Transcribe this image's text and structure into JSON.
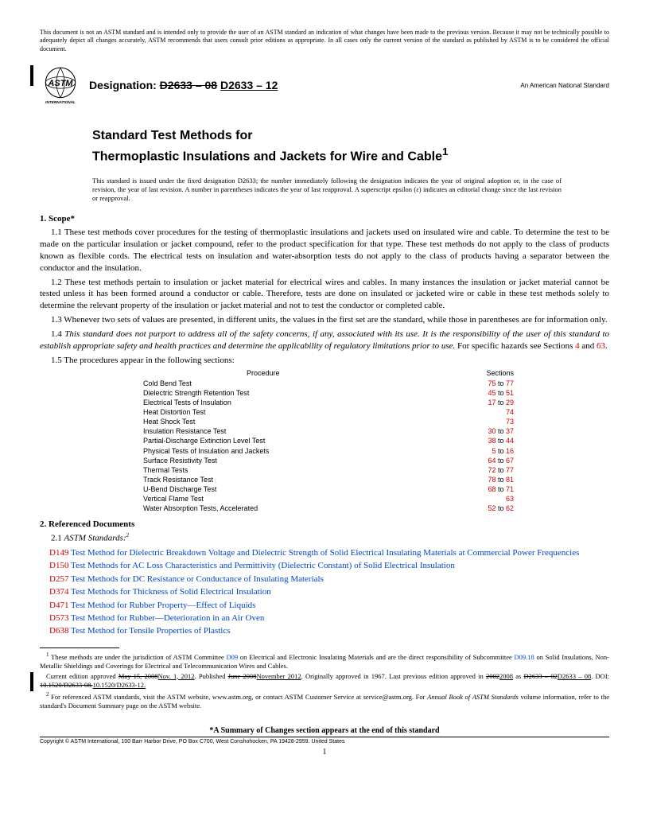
{
  "disclaimer": "This document is not an ASTM standard and is intended only to provide the user of an ASTM standard an indication of what changes have been made to the previous version. Because it may not be technically possible to adequately depict all changes accurately, ASTM recommends that users consult prior editions as appropriate. In all cases only the current version of the standard as published by ASTM is to be considered the official document.",
  "designation_label": "Designation:",
  "designation_old": "D2633 – 08",
  "designation_new": "D2633 – 12",
  "subtitle": "An American National Standard",
  "title_line1": "Standard Test Methods for",
  "title_line2": "Thermoplastic Insulations and Jackets for Wire and Cable",
  "title_sup": "1",
  "issuance": "This standard is issued under the fixed designation D2633; the number immediately following the designation indicates the year of original adoption or, in the case of revision, the year of last revision. A number in parentheses indicates the year of last reapproval. A superscript epsilon (ε) indicates an editorial change since the last revision or reapproval.",
  "scope_heading": "1. Scope*",
  "para_1_1": "1.1 These test methods cover procedures for the testing of thermoplastic insulations and jackets used on insulated wire and cable. To determine the test to be made on the particular insulation or jacket compound, refer to the product specification for that type. These test methods do not apply to the class of products known as flexible cords. The electrical tests on insulation and water-absorption tests do not apply to the class of products having a separator between the conductor and the insulation.",
  "para_1_2": "1.2 These test methods pertain to insulation or jacket material for electrical wires and cables. In many instances the insulation or jacket material cannot be tested unless it has been formed around a conductor or cable. Therefore, tests are done on insulated or jacketed wire or cable in these test methods solely to determine the relevant property of the insulation or jacket material and not to test the conductor or completed cable.",
  "para_1_3": "1.3 Whenever two sets of values are presented, in different units, the values in the first set are the standard, while those in parentheses are for information only.",
  "para_1_4_prefix": "1.4 ",
  "para_1_4_italic": "This standard does not purport to address all of the safety concerns, if any, associated with its use. It is the responsibility of the user of this standard to establish appropriate safety and health practices and determine the applicability of regulatory limitations prior to use.",
  "para_1_4_suffix": " For specific hazards see Sections ",
  "para_1_4_red1": "4",
  "para_1_4_mid": " and ",
  "para_1_4_red2": "63",
  "para_1_5": "1.5 The procedures appear in the following sections:",
  "proc_header_left": "Procedure",
  "proc_header_right": "Sections",
  "procedures": [
    {
      "name": "Cold Bend Test",
      "sections": "75 to 77"
    },
    {
      "name": "Dielectric Strength Retention Test",
      "sections": "45 to 51"
    },
    {
      "name": "Electrical Tests of Insulation",
      "sections": "17 to 29"
    },
    {
      "name": "Heat Distortion Test",
      "sections": "74"
    },
    {
      "name": "Heat Shock Test",
      "sections": "73"
    },
    {
      "name": "Insulation Resistance Test",
      "sections": "30 to 37"
    },
    {
      "name": "Partial-Discharge Extinction Level Test",
      "sections": "38 to 44"
    },
    {
      "name": "Physical Tests of Insulation and Jackets",
      "sections": "5 to 16"
    },
    {
      "name": "Surface Resistivity Test",
      "sections": "64 to 67"
    },
    {
      "name": "Thermal Tests",
      "sections": "72 to 77"
    },
    {
      "name": "Track Resistance Test",
      "sections": "78 to 81"
    },
    {
      "name": "U-Bend Discharge Test",
      "sections": "68 to 71"
    },
    {
      "name": "Vertical Flame Test",
      "sections": "63"
    },
    {
      "name": "Water Absorption Tests, Accelerated",
      "sections": "52 to 62"
    }
  ],
  "ref_heading": "2. Referenced Documents",
  "ref_sub": "2.1 ",
  "ref_sub_italic": "ASTM Standards:",
  "ref_sup": "2",
  "refs": [
    {
      "code": "D149",
      "text": "Test Method for Dielectric Breakdown Voltage and Dielectric Strength of Solid Electrical Insulating Materials at Commercial Power Frequencies"
    },
    {
      "code": "D150",
      "text": "Test Methods for AC Loss Characteristics and Permittivity (Dielectric Constant) of Solid Electrical Insulation"
    },
    {
      "code": "D257",
      "text": "Test Methods for DC Resistance or Conductance of Insulating Materials"
    },
    {
      "code": "D374",
      "text": "Test Methods for Thickness of Solid Electrical Insulation"
    },
    {
      "code": "D471",
      "text": "Test Method for Rubber Property—Effect of Liquids"
    },
    {
      "code": "D573",
      "text": "Test Method for Rubber—Deterioration in an Air Oven"
    },
    {
      "code": "D638",
      "text": "Test Method for Tensile Properties of Plastics"
    }
  ],
  "fn1_sup": "1",
  "fn1_a": " These methods are under the jurisdiction of ASTM Committee ",
  "fn1_d09": "D09",
  "fn1_b": " on Electrical and Electronic Insulating Materials and are the direct responsibility of Subcommittee ",
  "fn1_d0918": "D09.18",
  "fn1_c": " on Solid Insulations, Non-Metallic Shieldings and Coverings for Electrical and Telecommunication Wires and Cables.",
  "fn1_line2_a": "Current edition approved ",
  "fn1_may": "May 15, 2008",
  "fn1_nov": "Nov. 1, 2012",
  "fn1_pub": ". Published ",
  "fn1_jun": "June 2008",
  "fn1_nov2": "November 2012",
  "fn1_orig": ". Originally approved in 1967. Last previous edition approved in ",
  "fn1_2002": "2002",
  "fn1_2008": "2008",
  "fn1_as": " as ",
  "fn1_old": "D2633 – 02",
  "fn1_new": "D2633 – 08",
  "fn1_doi": ". DOI: ",
  "fn1_doi_old": "10.1520/D2633-08.",
  "fn1_doi_new": "10.1520/D2633-12.",
  "fn2_sup": "2",
  "fn2": " For referenced ASTM standards, visit the ASTM website, www.astm.org, or contact ASTM Customer Service at service@astm.org. For ",
  "fn2_italic": "Annual Book of ASTM Standards",
  "fn2_b": " volume information, refer to the standard's Document Summary page on the ASTM website.",
  "summary": "*A Summary of Changes section appears at the end of this standard",
  "copyright": "Copyright © ASTM International, 100 Barr Harbor Drive, PO Box C700, West Conshohocken, PA 19428-2959. United States",
  "page_num": "1",
  "logo_text": "INTERNATIONAL"
}
